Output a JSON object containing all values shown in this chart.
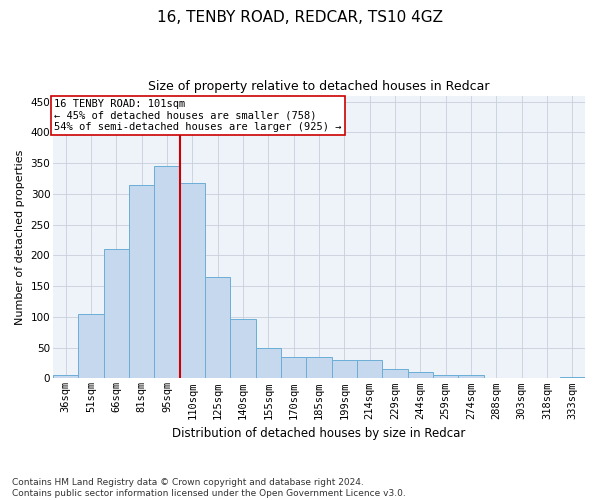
{
  "title1": "16, TENBY ROAD, REDCAR, TS10 4GZ",
  "title2": "Size of property relative to detached houses in Redcar",
  "xlabel": "Distribution of detached houses by size in Redcar",
  "ylabel": "Number of detached properties",
  "categories": [
    "36sqm",
    "51sqm",
    "66sqm",
    "81sqm",
    "95sqm",
    "110sqm",
    "125sqm",
    "140sqm",
    "155sqm",
    "170sqm",
    "185sqm",
    "199sqm",
    "214sqm",
    "229sqm",
    "244sqm",
    "259sqm",
    "274sqm",
    "288sqm",
    "303sqm",
    "318sqm",
    "333sqm"
  ],
  "values": [
    6,
    105,
    210,
    315,
    345,
    318,
    165,
    97,
    50,
    35,
    35,
    30,
    30,
    15,
    10,
    5,
    5,
    1,
    0,
    0,
    3
  ],
  "bar_color": "#c5d8ee",
  "bar_edge_color": "#6aaed6",
  "vline_x": 4.5,
  "vline_color": "#cc0000",
  "annotation_text": "16 TENBY ROAD: 101sqm\n← 45% of detached houses are smaller (758)\n54% of semi-detached houses are larger (925) →",
  "annotation_box_color": "#ffffff",
  "annotation_box_edge": "#cc0000",
  "ylim": [
    0,
    460
  ],
  "yticks": [
    0,
    50,
    100,
    150,
    200,
    250,
    300,
    350,
    400,
    450
  ],
  "footnote1": "Contains HM Land Registry data © Crown copyright and database right 2024.",
  "footnote2": "Contains public sector information licensed under the Open Government Licence v3.0.",
  "title1_fontsize": 11,
  "title2_fontsize": 9,
  "xlabel_fontsize": 8.5,
  "ylabel_fontsize": 8,
  "tick_fontsize": 7.5,
  "annotation_fontsize": 7.5,
  "footnote_fontsize": 6.5
}
